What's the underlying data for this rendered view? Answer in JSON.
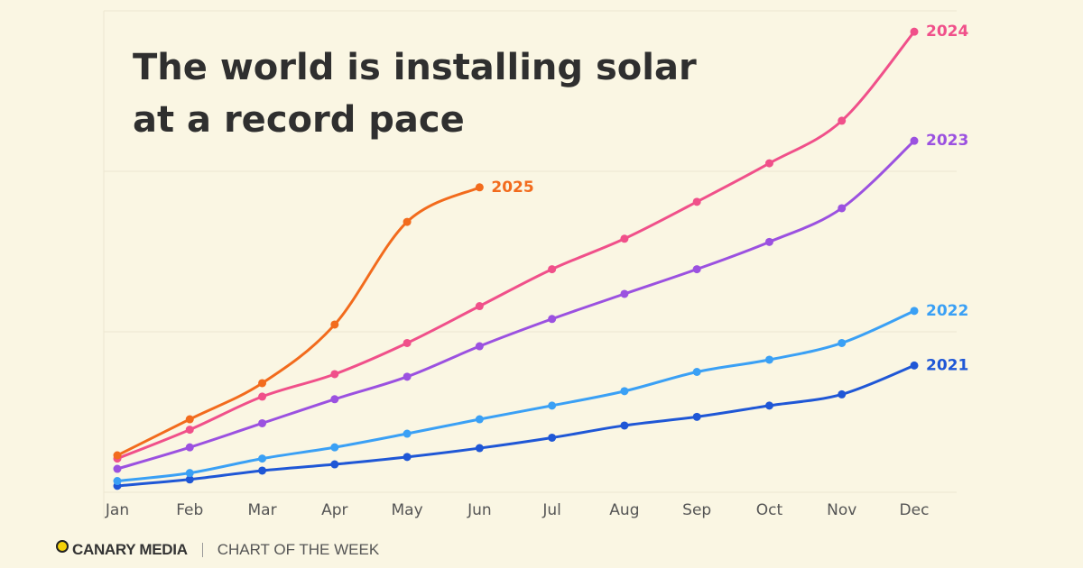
{
  "chart_data": {
    "type": "line",
    "title": "The world is installing solar at a record pace",
    "categories": [
      "Jan",
      "Feb",
      "Mar",
      "Apr",
      "May",
      "Jun",
      "Jul",
      "Aug",
      "Sep",
      "Oct",
      "Nov",
      "Dec"
    ],
    "ylim": [
      0,
      300
    ],
    "yticks": [
      0,
      100,
      200,
      300
    ],
    "grid": true,
    "series": [
      {
        "name": "2021",
        "color": "#1f57d6",
        "values": [
          4,
          8,
          13.5,
          17.4,
          22,
          27.5,
          34,
          41.6,
          47,
          54,
          61,
          79
        ]
      },
      {
        "name": "2022",
        "color": "#3aa0f5",
        "values": [
          7,
          12,
          21,
          28,
          36.5,
          45.5,
          54,
          63,
          75,
          82.6,
          93,
          113
        ]
      },
      {
        "name": "2023",
        "color": "#9b51e0",
        "values": [
          14.6,
          28,
          43,
          58,
          72,
          91,
          108,
          123.6,
          139,
          156,
          177,
          219
        ]
      },
      {
        "name": "2024",
        "color": "#f0508a",
        "values": [
          21,
          39,
          59.6,
          73.6,
          93,
          116,
          139,
          158,
          181,
          205,
          231.5,
          287
        ]
      },
      {
        "name": "2025",
        "color": "#f26b1d",
        "values": [
          23,
          45.5,
          68,
          104.5,
          168.5,
          190,
          null,
          null,
          null,
          null,
          null,
          null
        ]
      }
    ]
  },
  "footer": {
    "brand": "CANARY MEDIA",
    "tagline": "CHART OF THE WEEK"
  }
}
